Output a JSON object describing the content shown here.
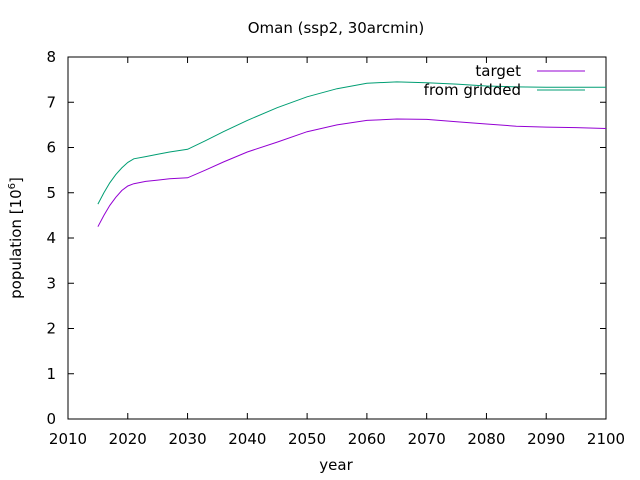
{
  "chart_data": {
    "type": "line",
    "title": "Oman (ssp2, 30arcmin)",
    "xlabel": "year",
    "ylabel_main": "population [10",
    "ylabel_exp": "6",
    "ylabel_close": "]",
    "xlim": [
      2010,
      2100
    ],
    "ylim": [
      0,
      8
    ],
    "xticks": [
      2010,
      2020,
      2030,
      2040,
      2050,
      2060,
      2070,
      2080,
      2090,
      2100
    ],
    "yticks": [
      0,
      1,
      2,
      3,
      4,
      5,
      6,
      7,
      8
    ],
    "grid": false,
    "legend_position": "top-right",
    "series": [
      {
        "name": "target",
        "color": "#9400d3",
        "x": [
          2015,
          2016,
          2017,
          2018,
          2019,
          2020,
          2021,
          2023,
          2025,
          2027,
          2030,
          2033,
          2036,
          2040,
          2045,
          2050,
          2055,
          2060,
          2065,
          2070,
          2075,
          2080,
          2085,
          2090,
          2095,
          2100
        ],
        "y": [
          4.25,
          4.5,
          4.72,
          4.9,
          5.05,
          5.15,
          5.2,
          5.25,
          5.28,
          5.31,
          5.33,
          5.5,
          5.68,
          5.9,
          6.12,
          6.35,
          6.5,
          6.6,
          6.63,
          6.62,
          6.57,
          6.52,
          6.47,
          6.45,
          6.44,
          6.42
        ]
      },
      {
        "name": "from gridded",
        "color": "#009e73",
        "x": [
          2015,
          2016,
          2017,
          2018,
          2019,
          2020,
          2021,
          2023,
          2025,
          2027,
          2030,
          2033,
          2036,
          2040,
          2045,
          2050,
          2055,
          2060,
          2065,
          2070,
          2075,
          2080,
          2085,
          2090,
          2095,
          2100
        ],
        "y": [
          4.75,
          5.0,
          5.22,
          5.4,
          5.55,
          5.67,
          5.75,
          5.8,
          5.85,
          5.9,
          5.96,
          6.15,
          6.35,
          6.6,
          6.88,
          7.12,
          7.3,
          7.42,
          7.45,
          7.43,
          7.4,
          7.36,
          7.34,
          7.33,
          7.33,
          7.33
        ]
      }
    ]
  }
}
